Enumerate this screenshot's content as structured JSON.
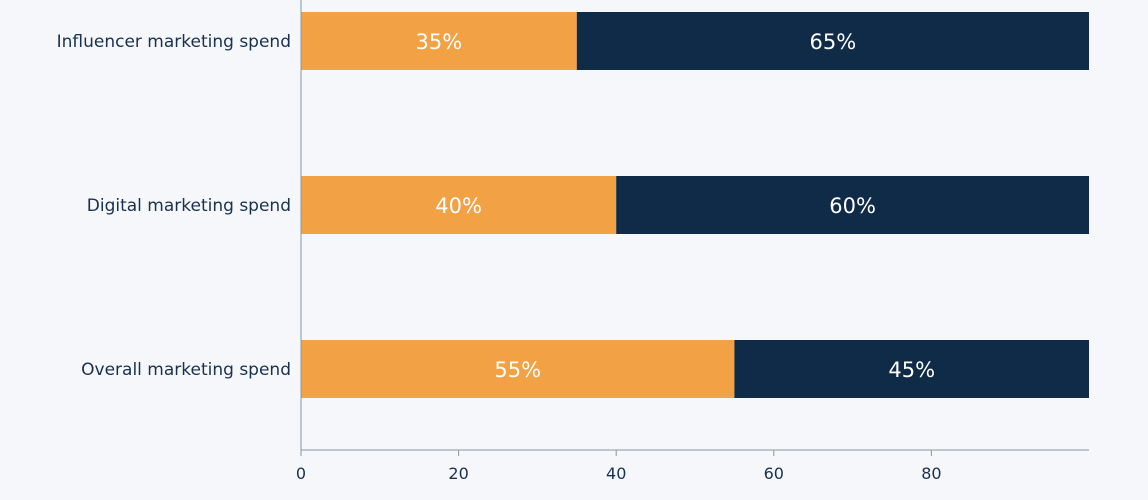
{
  "chart_data": {
    "type": "bar",
    "orientation": "horizontal",
    "stacked": true,
    "categories": [
      "Influencer marketing spend",
      "Digital marketing spend",
      "Overall marketing spend"
    ],
    "series": [
      {
        "values": [
          35,
          40,
          55
        ],
        "labels": [
          "35%",
          "40%",
          "55%"
        ],
        "color": "#f2a145"
      },
      {
        "values": [
          65,
          60,
          45
        ],
        "labels": [
          "65%",
          "60%",
          "45%"
        ],
        "color": "#0f2b47"
      }
    ],
    "xticks": [
      0,
      20,
      40,
      60,
      80
    ],
    "xlim": [
      0,
      100
    ],
    "grid": false,
    "legend": "none"
  },
  "colors": {
    "background": "#f5f7fa",
    "axis": "#8a96a3",
    "text": "#17314f"
  }
}
